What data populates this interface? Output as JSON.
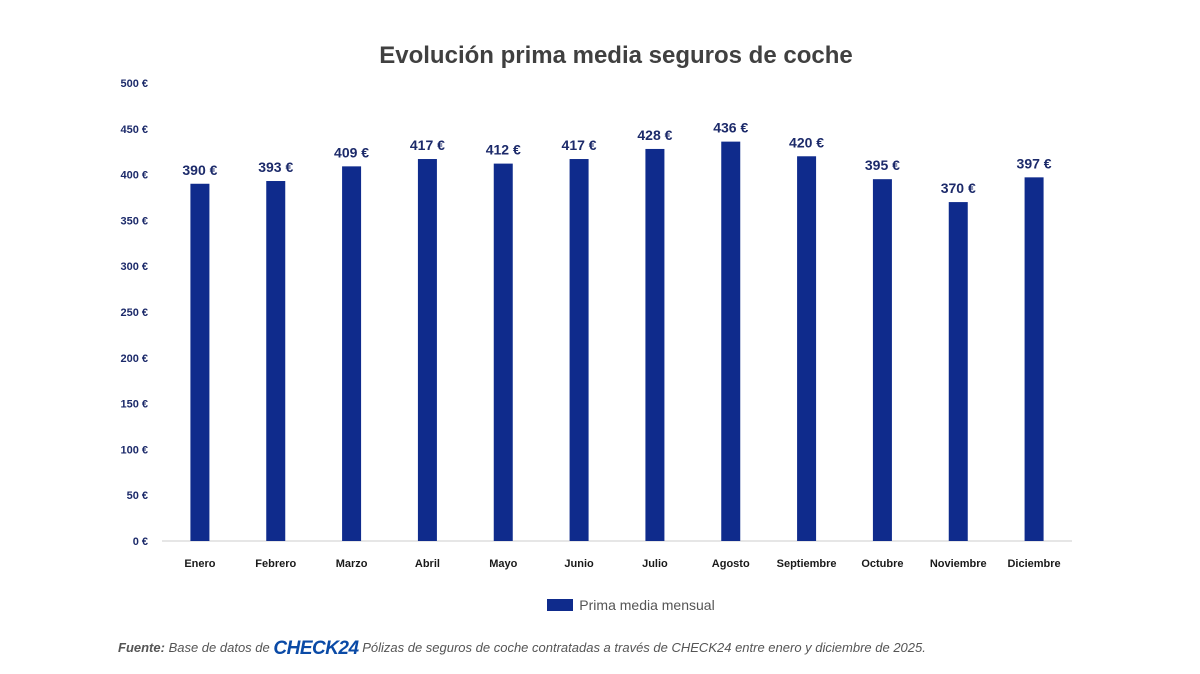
{
  "chart_data": {
    "type": "bar",
    "title": "Evolución prima media seguros de coche",
    "categories": [
      "Enero",
      "Febrero",
      "Marzo",
      "Abril",
      "Mayo",
      "Junio",
      "Julio",
      "Agosto",
      "Septiembre",
      "Octubre",
      "Noviembre",
      "Diciembre"
    ],
    "series": [
      {
        "name": "Prima media mensual",
        "values": [
          390,
          393,
          409,
          417,
          412,
          417,
          428,
          436,
          420,
          395,
          370,
          397
        ],
        "data_labels": [
          "390 €",
          "393 €",
          "409 €",
          "417 €",
          "412 €",
          "417 €",
          "428 €",
          "436 €",
          "420 €",
          "395 €",
          "370 €",
          "397 €"
        ],
        "color": "#0f2b8c"
      }
    ],
    "y_ticks": [
      0,
      50,
      100,
      150,
      200,
      250,
      300,
      350,
      400,
      450,
      500
    ],
    "y_tick_labels": [
      "0 €",
      "50 €",
      "100 €",
      "150 €",
      "200 €",
      "250 €",
      "300 €",
      "350 €",
      "400 €",
      "450 €",
      "500 €"
    ],
    "ylim": [
      0,
      500
    ],
    "grid": false,
    "legend_position": "bottom"
  },
  "source": {
    "prefix": "Fuente:",
    "text_before": " Base de datos de ",
    "logo_text": "CHECK24",
    "text_after": " Pólizas de seguros de coche contratadas a través de CHECK24 entre enero y diciembre de 2025."
  },
  "colors": {
    "bar": "#0f2b8c",
    "title": "#404040",
    "axis_text": "#1c2a6a"
  }
}
